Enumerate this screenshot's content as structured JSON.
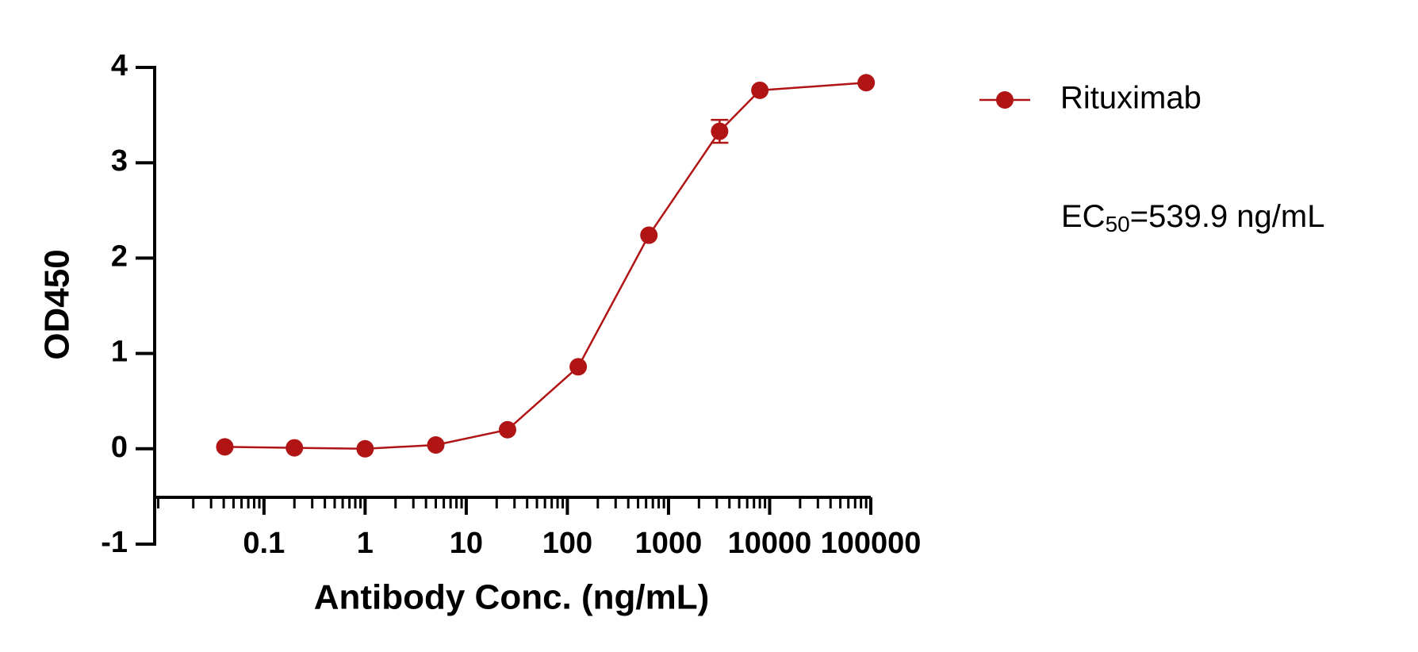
{
  "chart_data": {
    "type": "line",
    "x_label": "Antibody Conc. (ng/mL)",
    "y_label": "OD450",
    "annotation": {
      "main": "EC",
      "sub": "50",
      "tail": "=539.9 ng/mL"
    },
    "log_x": true,
    "xlim": [
      0.0083,
      100000
    ],
    "xticks": [
      0.1,
      1,
      10,
      100,
      1000,
      10000,
      100000
    ],
    "ylim": [
      -1,
      4
    ],
    "yticks": [
      -1,
      0,
      1,
      2,
      3,
      4
    ],
    "legend": "top-right",
    "series": [
      {
        "name": "Rituximab",
        "color": "#b01414",
        "x": [
          0.041,
          0.2,
          1,
          5,
          25.6,
          128,
          640,
          3200,
          8000,
          90000
        ],
        "values": [
          0.02,
          0.01,
          0,
          0.04,
          0.2,
          0.86,
          2.24,
          3.33,
          3.76,
          3.84
        ],
        "errors": [
          null,
          null,
          null,
          null,
          null,
          null,
          null,
          0.12,
          null,
          null
        ]
      }
    ]
  }
}
